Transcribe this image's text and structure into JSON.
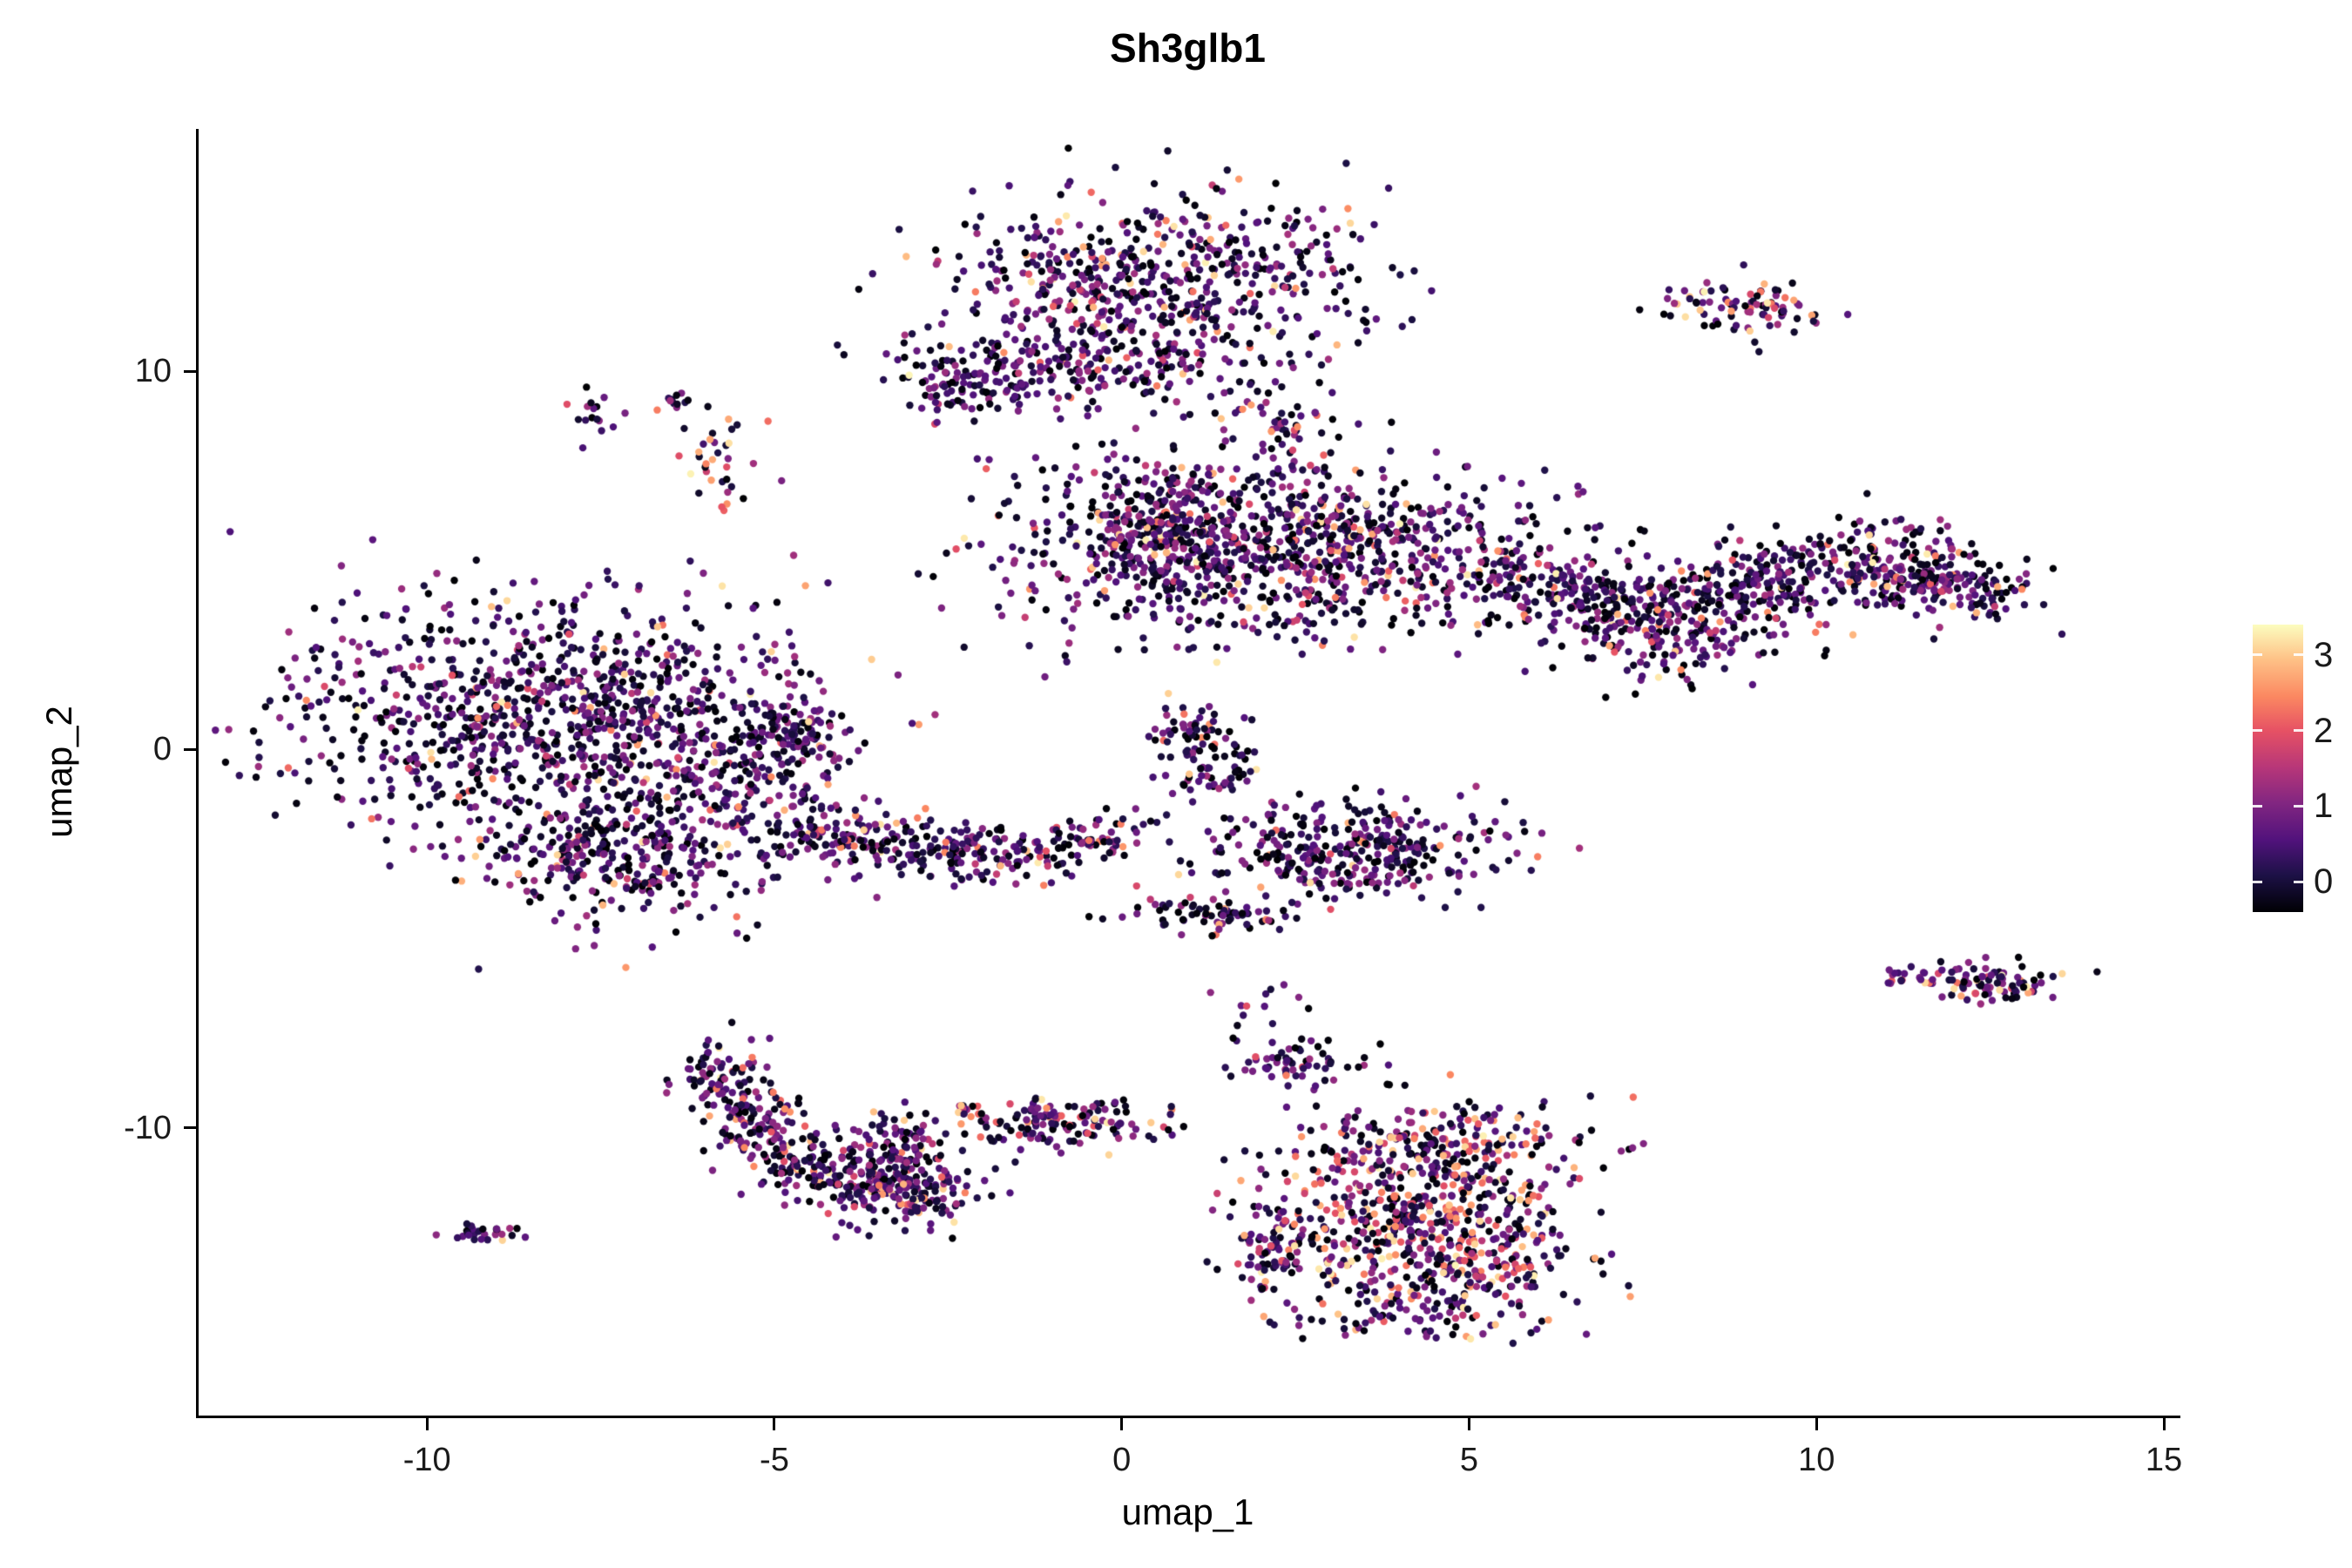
{
  "chart_data": {
    "type": "scatter",
    "title": "Sh3glb1",
    "xlabel": "umap_1",
    "ylabel": "umap_2",
    "x_domain": [
      -13.3,
      15.2
    ],
    "y_domain": [
      -17.6,
      16.4
    ],
    "x_tick_values": [
      -10,
      -5,
      0,
      5,
      10,
      15
    ],
    "x_tick_labels": [
      "-10",
      "-5",
      "0",
      "5",
      "10",
      "15"
    ],
    "y_tick_values": [
      10,
      0,
      -10
    ],
    "y_tick_labels": [
      "10",
      "0",
      "-10"
    ],
    "grid": false,
    "legend_position": "right",
    "seed": 1337,
    "point_radius": 4.2,
    "colormap": {
      "name": "magma",
      "value_min": 0,
      "value_max": 3.35,
      "stops": [
        [
          0.0,
          "#000004"
        ],
        [
          0.13,
          "#1D1147"
        ],
        [
          0.25,
          "#51127C"
        ],
        [
          0.38,
          "#822681"
        ],
        [
          0.5,
          "#B63679"
        ],
        [
          0.63,
          "#E65164"
        ],
        [
          0.75,
          "#FB8861"
        ],
        [
          0.88,
          "#FEC287"
        ],
        [
          1.0,
          "#FCFDBF"
        ]
      ]
    },
    "colorbar": {
      "tick_values": [
        0,
        1,
        2,
        3
      ],
      "tick_labels": [
        "0",
        "1",
        "2",
        "3"
      ],
      "bar_value_min": -0.4,
      "bar_value_max": 3.4
    },
    "clusters": [
      {
        "cx": 0.3,
        "cy": 12.3,
        "sx": 1.6,
        "sy": 1.1,
        "n": 620,
        "hot": 0.1
      },
      {
        "cx": -0.6,
        "cy": 10.0,
        "sx": 1.3,
        "sy": 0.6,
        "n": 180,
        "hot": 0.06
      },
      {
        "cx": -2.3,
        "cy": 9.6,
        "sx": 0.45,
        "sy": 0.45,
        "n": 70,
        "hot": 0.04
      },
      {
        "cx": 2.3,
        "cy": 8.5,
        "sx": 0.4,
        "sy": 0.45,
        "n": 45,
        "hot": 0.08
      },
      {
        "cx": -1.0,
        "cy": 7.3,
        "sx": 1.2,
        "sy": 0.5,
        "n": 10,
        "hot": 0.1
      },
      {
        "cx": 9.0,
        "cy": 11.7,
        "sx": 0.5,
        "sy": 0.35,
        "n": 90,
        "hot": 0.15
      },
      {
        "cx": -7.6,
        "cy": 8.9,
        "sx": 0.18,
        "sy": 0.35,
        "n": 16,
        "hot": 0.05
      },
      {
        "cx": -6.4,
        "cy": 9.2,
        "sx": 0.18,
        "sy": 0.18,
        "n": 12,
        "hot": 0.05
      },
      {
        "cx": -5.8,
        "cy": 7.6,
        "sx": 0.28,
        "sy": 0.75,
        "n": 34,
        "hot": 0.45
      },
      {
        "cx": 2.2,
        "cy": 5.3,
        "sx": 1.9,
        "sy": 1.15,
        "n": 950,
        "hot": 0.12
      },
      {
        "cx": 0.5,
        "cy": 5.9,
        "sx": 0.5,
        "sy": 0.9,
        "n": 180,
        "hot": 0.08
      },
      {
        "cx": 5.9,
        "cy": 4.4,
        "sx": 0.7,
        "sy": 0.65,
        "n": 130,
        "hot": 0.1
      },
      {
        "cx": 7.1,
        "cy": 3.9,
        "sx": 0.7,
        "sy": 0.6,
        "n": 130,
        "hot": 0.08
      },
      {
        "cx": 8.3,
        "cy": 3.7,
        "sx": 0.7,
        "sy": 0.55,
        "n": 120,
        "hot": 0.08
      },
      {
        "cx": 9.4,
        "cy": 4.4,
        "sx": 0.7,
        "sy": 0.55,
        "n": 120,
        "hot": 0.08
      },
      {
        "cx": 10.5,
        "cy": 5.0,
        "sx": 0.7,
        "sy": 0.5,
        "n": 110,
        "hot": 0.08
      },
      {
        "cx": 11.5,
        "cy": 4.8,
        "sx": 0.6,
        "sy": 0.5,
        "n": 110,
        "hot": 0.08
      },
      {
        "cx": 12.3,
        "cy": 4.2,
        "sx": 0.5,
        "sy": 0.45,
        "n": 90,
        "hot": 0.08
      },
      {
        "cx": 7.9,
        "cy": 2.7,
        "sx": 0.8,
        "sy": 0.5,
        "n": 90,
        "hot": 0.08
      },
      {
        "cx": -8.3,
        "cy": 0.9,
        "sx": 1.9,
        "sy": 1.5,
        "n": 950,
        "hot": 0.07
      },
      {
        "cx": -7.2,
        "cy": -2.7,
        "sx": 1.3,
        "sy": 1.0,
        "n": 380,
        "hot": 0.08
      },
      {
        "cx": -5.4,
        "cy": -0.4,
        "sx": 0.8,
        "sy": 0.9,
        "n": 170,
        "hot": 0.06
      },
      {
        "cx": -4.6,
        "cy": 0.4,
        "sx": 0.35,
        "sy": 0.35,
        "n": 60,
        "hot": 0.05
      },
      {
        "cx": -4.1,
        "cy": -2.2,
        "sx": 0.6,
        "sy": 0.4,
        "n": 80,
        "hot": 0.1
      },
      {
        "cx": -2.8,
        "cy": -2.7,
        "sx": 0.7,
        "sy": 0.4,
        "n": 110,
        "hot": 0.1
      },
      {
        "cx": -1.4,
        "cy": -2.8,
        "sx": 0.6,
        "sy": 0.35,
        "n": 80,
        "hot": 0.1
      },
      {
        "cx": -0.3,
        "cy": -2.4,
        "sx": 0.4,
        "sy": 0.3,
        "n": 45,
        "hot": 0.1
      },
      {
        "cx": 3.3,
        "cy": -2.7,
        "sx": 1.05,
        "sy": 0.65,
        "n": 340,
        "hot": 0.05
      },
      {
        "cx": 1.3,
        "cy": -0.5,
        "sx": 0.35,
        "sy": 0.6,
        "n": 70,
        "hot": 0.08
      },
      {
        "cx": 0.9,
        "cy": 0.6,
        "sx": 0.3,
        "sy": 0.4,
        "n": 40,
        "hot": 0.08
      },
      {
        "cx": 1.2,
        "cy": -4.4,
        "sx": 0.6,
        "sy": 0.25,
        "n": 70,
        "hot": 0.1
      },
      {
        "cx": -5.8,
        "cy": -8.7,
        "sx": 0.35,
        "sy": 0.5,
        "n": 80,
        "hot": 0.1
      },
      {
        "cx": -5.3,
        "cy": -9.9,
        "sx": 0.4,
        "sy": 0.5,
        "n": 90,
        "hot": 0.1
      },
      {
        "cx": -4.5,
        "cy": -10.9,
        "sx": 0.5,
        "sy": 0.45,
        "n": 110,
        "hot": 0.12
      },
      {
        "cx": -3.5,
        "cy": -11.5,
        "sx": 0.55,
        "sy": 0.45,
        "n": 140,
        "hot": 0.12
      },
      {
        "cx": -2.9,
        "cy": -11.8,
        "sx": 0.4,
        "sy": 0.4,
        "n": 80,
        "hot": 0.12
      },
      {
        "cx": -3.1,
        "cy": -10.3,
        "sx": 0.35,
        "sy": 0.5,
        "n": 70,
        "hot": 0.1
      },
      {
        "cx": -9.1,
        "cy": -12.8,
        "sx": 0.25,
        "sy": 0.18,
        "n": 26,
        "hot": 0.04
      },
      {
        "cx": -0.9,
        "cy": -9.9,
        "sx": 0.85,
        "sy": 0.35,
        "n": 140,
        "hot": 0.15
      },
      {
        "cx": -2.3,
        "cy": -9.6,
        "sx": 0.15,
        "sy": 0.15,
        "n": 10,
        "hot": 0.1
      },
      {
        "cx": 2.6,
        "cy": -8.3,
        "sx": 0.6,
        "sy": 0.3,
        "n": 60,
        "hot": 0.05
      },
      {
        "cx": 1.9,
        "cy": -6.9,
        "sx": 0.4,
        "sy": 0.5,
        "n": 14,
        "hot": 0.1
      },
      {
        "cx": 4.5,
        "cy": -10.7,
        "sx": 1.1,
        "sy": 0.75,
        "n": 320,
        "hot": 0.3
      },
      {
        "cx": 4.2,
        "cy": -12.3,
        "sx": 1.0,
        "sy": 0.5,
        "n": 210,
        "hot": 0.32
      },
      {
        "cx": 4.6,
        "cy": -13.7,
        "sx": 1.15,
        "sy": 0.6,
        "n": 280,
        "hot": 0.3
      },
      {
        "cx": 2.1,
        "cy": -13.2,
        "sx": 0.3,
        "sy": 0.8,
        "n": 80,
        "hot": 0.15
      },
      {
        "cx": 4.0,
        "cy": -15.1,
        "sx": 0.8,
        "sy": 0.3,
        "n": 60,
        "hot": 0.2
      },
      {
        "cx": 12.4,
        "cy": -6.2,
        "sx": 0.55,
        "sy": 0.25,
        "n": 95,
        "hot": 0.3
      },
      {
        "cx": 11.3,
        "cy": -6.0,
        "sx": 0.15,
        "sy": 0.12,
        "n": 12,
        "hot": 0.2
      }
    ]
  }
}
